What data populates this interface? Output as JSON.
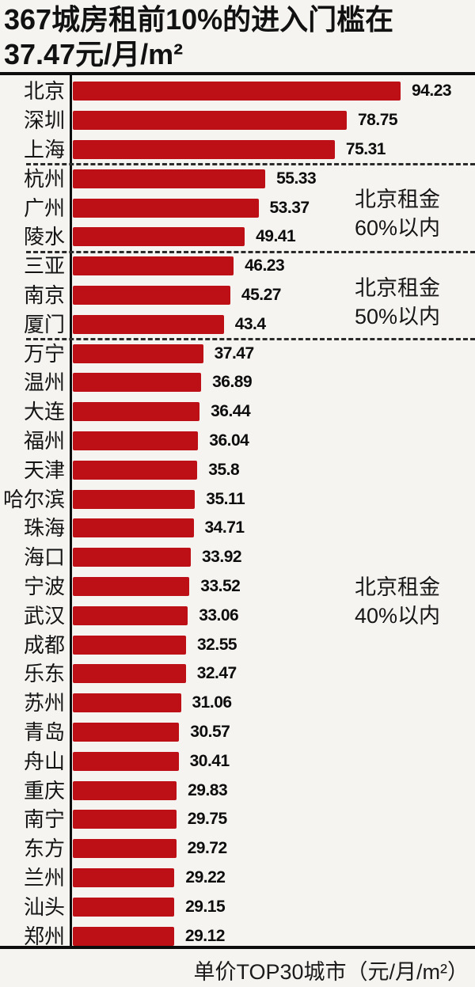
{
  "title": {
    "line1": "367城房租前10%的进入门槛在",
    "line2": "37.47元/月/m²"
  },
  "caption": "单价TOP30城市（元/月/m²）",
  "colors": {
    "bar": "#bd1016",
    "background": "#f5f4f1",
    "line": "#0d0d0d"
  },
  "chart_data": {
    "type": "bar",
    "orientation": "horizontal",
    "title": "367城房租前10%的进入门槛在37.47元/月/m²",
    "xlabel": "单价TOP30城市（元/月/m²）",
    "unit": "元/月/m²",
    "max_value": 94.23,
    "xlim": [
      0,
      94.23
    ],
    "grid": false,
    "categories": [
      "北京",
      "深圳",
      "上海",
      "杭州",
      "广州",
      "陵水",
      "三亚",
      "南京",
      "厦门",
      "万宁",
      "温州",
      "大连",
      "福州",
      "天津",
      "哈尔滨",
      "珠海",
      "海口",
      "宁波",
      "武汉",
      "成都",
      "乐东",
      "苏州",
      "青岛",
      "舟山",
      "重庆",
      "南宁",
      "东方",
      "兰州",
      "汕头",
      "郑州"
    ],
    "values": [
      94.23,
      78.75,
      75.31,
      55.33,
      53.37,
      49.41,
      46.23,
      45.27,
      43.4,
      37.47,
      36.89,
      36.44,
      36.04,
      35.8,
      35.11,
      34.71,
      33.92,
      33.52,
      33.06,
      32.55,
      32.47,
      31.06,
      30.57,
      30.41,
      29.83,
      29.75,
      29.72,
      29.22,
      29.15,
      29.12
    ],
    "separators_after": [
      2,
      5,
      8
    ],
    "annotations": [
      {
        "name": "annotation-within-60pct",
        "text": "北京租金\n60%以内"
      },
      {
        "name": "annotation-within-50pct",
        "text": "北京租金\n50%以内"
      },
      {
        "name": "annotation-within-40pct",
        "text": "北京租金\n40%以内"
      }
    ]
  }
}
